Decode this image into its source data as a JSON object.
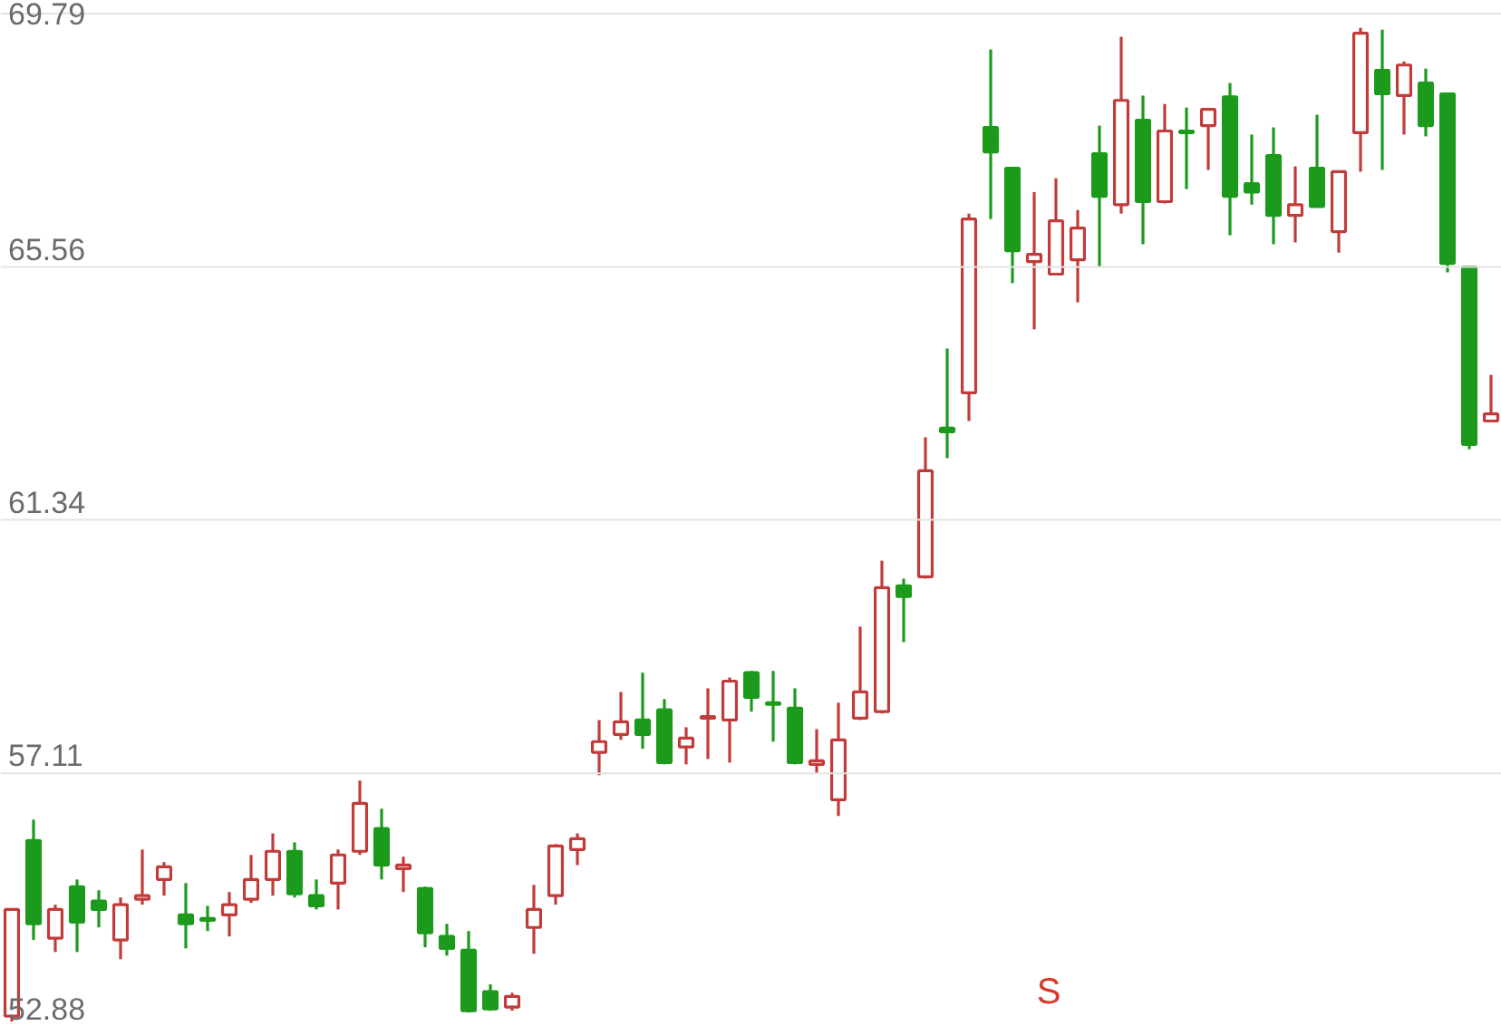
{
  "chart_data": {
    "type": "candlestick",
    "categories": [
      null,
      null,
      null,
      null,
      null,
      null,
      null,
      null,
      null,
      null,
      null,
      null,
      null,
      null,
      null,
      null,
      null,
      null,
      null,
      null,
      null,
      null,
      null,
      null,
      null,
      null,
      null,
      null,
      null,
      null,
      null,
      null,
      null,
      null,
      null,
      null,
      null,
      null,
      null,
      null,
      null,
      null,
      null,
      null,
      null,
      null,
      null,
      null,
      null,
      null,
      null,
      null,
      null,
      null,
      null,
      null,
      null,
      null,
      null,
      null,
      null,
      null,
      null,
      null,
      null,
      null,
      null,
      null,
      null
    ],
    "ohlc": [
      [
        53.06,
        54.84,
        52.97,
        54.84
      ],
      [
        55.99,
        56.34,
        54.33,
        54.6
      ],
      [
        54.36,
        54.92,
        54.13,
        54.84
      ],
      [
        55.22,
        55.34,
        54.13,
        54.63
      ],
      [
        54.98,
        55.16,
        54.54,
        54.84
      ],
      [
        54.33,
        55.04,
        54.01,
        54.92
      ],
      [
        55.01,
        55.84,
        54.92,
        55.07
      ],
      [
        55.34,
        55.63,
        55.07,
        55.55
      ],
      [
        54.75,
        55.28,
        54.19,
        54.6
      ],
      [
        54.69,
        54.9,
        54.48,
        54.66
      ],
      [
        54.75,
        55.13,
        54.39,
        54.92
      ],
      [
        55.01,
        55.75,
        54.95,
        55.34
      ],
      [
        55.34,
        56.11,
        55.07,
        55.81
      ],
      [
        55.81,
        55.96,
        55.04,
        55.1
      ],
      [
        55.07,
        55.34,
        54.84,
        54.9
      ],
      [
        55.28,
        55.84,
        54.84,
        55.75
      ],
      [
        55.81,
        56.99,
        55.75,
        56.61
      ],
      [
        56.19,
        56.52,
        55.34,
        55.58
      ],
      [
        55.52,
        55.72,
        55.13,
        55.58
      ],
      [
        55.19,
        55.22,
        54.21,
        54.45
      ],
      [
        54.39,
        54.6,
        54.07,
        54.19
      ],
      [
        54.16,
        54.48,
        53.12,
        53.15
      ],
      [
        53.47,
        53.59,
        53.15,
        53.18
      ],
      [
        53.21,
        53.45,
        53.15,
        53.39
      ],
      [
        54.54,
        55.25,
        54.1,
        54.84
      ],
      [
        55.07,
        55.93,
        54.92,
        55.9
      ],
      [
        55.84,
        56.11,
        55.58,
        56.02
      ],
      [
        57.46,
        58.0,
        57.08,
        57.64
      ],
      [
        57.76,
        58.47,
        57.67,
        57.97
      ],
      [
        58.0,
        58.79,
        57.52,
        57.76
      ],
      [
        58.17,
        58.35,
        57.26,
        57.29
      ],
      [
        57.55,
        57.88,
        57.26,
        57.7
      ],
      [
        58.03,
        58.53,
        57.35,
        58.06
      ],
      [
        58.0,
        58.71,
        57.29,
        58.65
      ],
      [
        58.79,
        58.82,
        58.14,
        58.38
      ],
      [
        58.29,
        58.82,
        57.64,
        58.26
      ],
      [
        58.2,
        58.53,
        57.26,
        57.29
      ],
      [
        57.26,
        57.85,
        57.11,
        57.32
      ],
      [
        56.67,
        58.29,
        56.4,
        57.67
      ],
      [
        58.03,
        59.56,
        58.0,
        58.47
      ],
      [
        58.14,
        60.66,
        58.11,
        60.21
      ],
      [
        60.24,
        60.36,
        59.3,
        60.06
      ],
      [
        60.39,
        62.72,
        60.36,
        62.16
      ],
      [
        62.87,
        64.2,
        62.37,
        62.81
      ],
      [
        63.46,
        66.45,
        62.99,
        66.36
      ],
      [
        67.89,
        69.19,
        66.36,
        67.48
      ],
      [
        67.21,
        67.21,
        65.29,
        65.83
      ],
      [
        65.65,
        66.81,
        64.52,
        65.77
      ],
      [
        65.44,
        67.04,
        65.44,
        66.33
      ],
      [
        65.68,
        66.51,
        64.97,
        66.21
      ],
      [
        67.45,
        67.92,
        65.56,
        66.74
      ],
      [
        66.6,
        69.4,
        66.45,
        68.34
      ],
      [
        68.01,
        68.42,
        65.94,
        66.65
      ],
      [
        66.65,
        68.28,
        66.62,
        67.83
      ],
      [
        67.83,
        68.22,
        66.86,
        67.8
      ],
      [
        67.92,
        68.19,
        67.18,
        68.19
      ],
      [
        68.4,
        68.63,
        66.09,
        66.74
      ],
      [
        66.95,
        67.77,
        66.6,
        66.81
      ],
      [
        67.42,
        67.89,
        65.94,
        66.42
      ],
      [
        66.42,
        67.24,
        65.97,
        66.6
      ],
      [
        67.21,
        68.1,
        66.57,
        66.57
      ],
      [
        66.15,
        67.15,
        65.8,
        67.15
      ],
      [
        67.8,
        69.55,
        67.15,
        69.46
      ],
      [
        68.84,
        69.52,
        67.18,
        68.45
      ],
      [
        68.42,
        68.99,
        67.77,
        68.93
      ],
      [
        68.63,
        68.87,
        67.74,
        67.92
      ],
      [
        68.45,
        68.45,
        65.47,
        65.62
      ],
      [
        65.56,
        65.56,
        62.52,
        62.6
      ],
      [
        62.99,
        63.76,
        62.99,
        63.11
      ]
    ],
    "colors": [
      "#c23b3b",
      "#1b9a1b",
      "#c23b3b",
      "#1b9a1b",
      "#1b9a1b",
      "#c23b3b",
      "#c23b3b",
      "#c23b3b",
      "#1b9a1b",
      "#1b9a1b",
      "#c23b3b",
      "#c23b3b",
      "#c23b3b",
      "#1b9a1b",
      "#1b9a1b",
      "#c23b3b",
      "#c23b3b",
      "#1b9a1b",
      "#c23b3b",
      "#1b9a1b",
      "#1b9a1b",
      "#1b9a1b",
      "#1b9a1b",
      "#c23b3b",
      "#c23b3b",
      "#c23b3b",
      "#c23b3b",
      "#c23b3b",
      "#c23b3b",
      "#1b9a1b",
      "#1b9a1b",
      "#c23b3b",
      "#c23b3b",
      "#c23b3b",
      "#1b9a1b",
      "#1b9a1b",
      "#1b9a1b",
      "#c23b3b",
      "#c23b3b",
      "#c23b3b",
      "#c23b3b",
      "#1b9a1b",
      "#c23b3b",
      "#1b9a1b",
      "#c23b3b",
      "#1b9a1b",
      "#1b9a1b",
      "#c23b3b",
      "#c23b3b",
      "#c23b3b",
      "#1b9a1b",
      "#c23b3b",
      "#1b9a1b",
      "#c23b3b",
      "#1b9a1b",
      "#c23b3b",
      "#1b9a1b",
      "#1b9a1b",
      "#1b9a1b",
      "#c23b3b",
      "#1b9a1b",
      "#c23b3b",
      "#c23b3b",
      "#1b9a1b",
      "#c23b3b",
      "#1b9a1b",
      "#1b9a1b",
      "#1b9a1b",
      "#c23b3b"
    ],
    "ylim": [
      52.88,
      70.0
    ],
    "yticks": [
      52.88,
      57.11,
      61.34,
      65.56,
      69.79
    ],
    "grid": "y",
    "annotations": [
      "S"
    ]
  }
}
